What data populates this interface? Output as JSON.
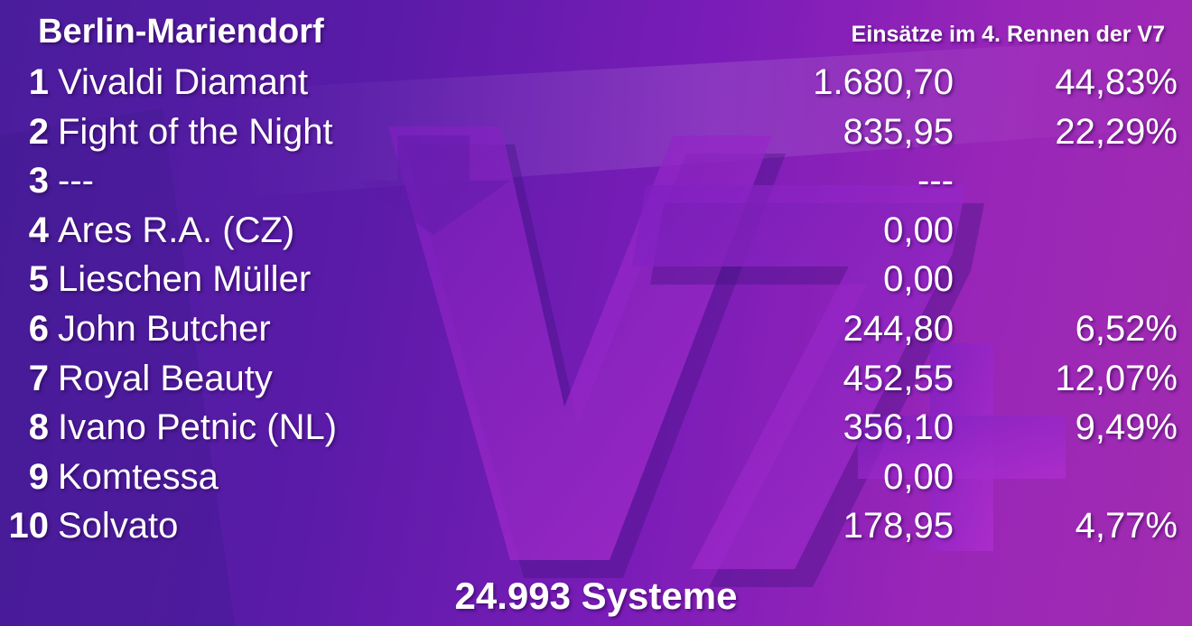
{
  "header": {
    "venue": "Berlin-Mariendorf",
    "subtitle": "Einsätze im 4. Rennen der V7"
  },
  "rows": [
    {
      "number": "1",
      "name": "Vivaldi Diamant",
      "amount": "1.680,70",
      "percent": "44,83%"
    },
    {
      "number": "2",
      "name": "Fight of the Night",
      "amount": "835,95",
      "percent": "22,29%"
    },
    {
      "number": "3",
      "name": "---",
      "amount": "---",
      "percent": ""
    },
    {
      "number": "4",
      "name": "Ares R.A. (CZ)",
      "amount": "0,00",
      "percent": ""
    },
    {
      "number": "5",
      "name": "Lieschen Müller",
      "amount": "0,00",
      "percent": ""
    },
    {
      "number": "6",
      "name": "John Butcher",
      "amount": "244,80",
      "percent": "6,52%"
    },
    {
      "number": "7",
      "name": "Royal Beauty",
      "amount": "452,55",
      "percent": "12,07%"
    },
    {
      "number": "8",
      "name": "Ivano Petnic (NL)",
      "amount": "356,10",
      "percent": "9,49%"
    },
    {
      "number": "9",
      "name": "Komtessa",
      "amount": "0,00",
      "percent": ""
    },
    {
      "number": "10",
      "name": "Solvato",
      "amount": "178,95",
      "percent": "4,77%"
    }
  ],
  "footer": {
    "total": "24.993 Systeme"
  },
  "background": {
    "logo_text": "V7+",
    "colors": {
      "base_left": "#4a1d9c",
      "base_right": "#a12cb0",
      "logo": "#8a1fc4"
    }
  }
}
